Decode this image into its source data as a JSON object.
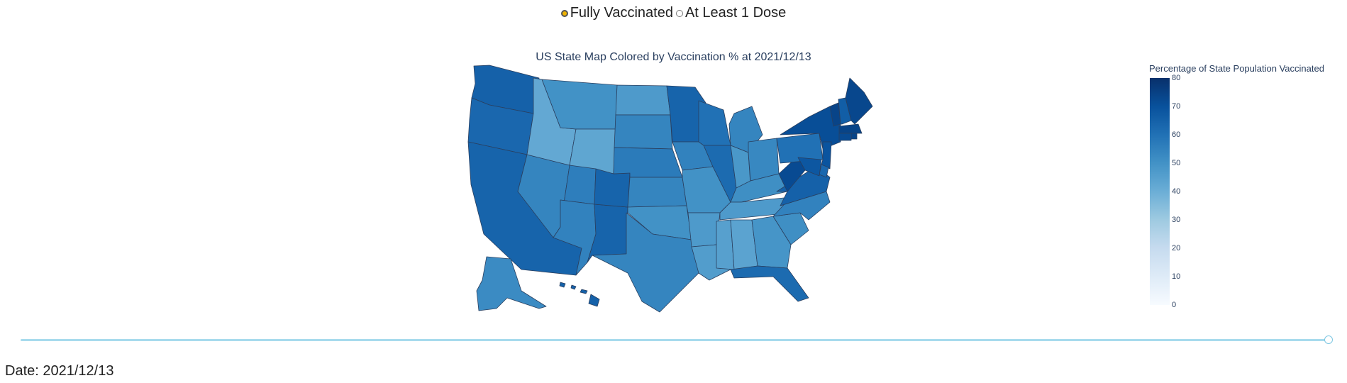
{
  "radio": {
    "options": [
      {
        "label": "Fully Vaccinated",
        "checked": true
      },
      {
        "label": "At Least 1 Dose",
        "checked": false
      }
    ]
  },
  "map": {
    "title": "US State Map Colored by Vaccination %  at 2021/12/13",
    "state_values": {
      "WA": 65,
      "OR": 63,
      "CA": 64,
      "NV": 54,
      "ID": 42,
      "MT": 50,
      "WY": 43,
      "UT": 56,
      "AZ": 55,
      "NM": 64,
      "CO": 64,
      "ND": 47,
      "SD": 54,
      "NE": 57,
      "KS": 54,
      "OK": 50,
      "TX": 54,
      "MN": 64,
      "IA": 55,
      "MO": 50,
      "AR": 47,
      "LA": 46,
      "WI": 60,
      "IL": 62,
      "MI": 54,
      "IN": 48,
      "OH": 53,
      "KY": 51,
      "TN": 47,
      "MS": 45,
      "AL": 44,
      "GA": 49,
      "FL": 62,
      "SC": 51,
      "NC": 55,
      "VA": 65,
      "WV": 72,
      "PA": 60,
      "NY": 71,
      "VT": 74,
      "NH": 66,
      "ME": 73,
      "MA": 74,
      "RI": 74,
      "CT": 72,
      "NJ": 69,
      "DE": 63,
      "MD": 68,
      "AK": 52,
      "HI": 65
    }
  },
  "colorbar": {
    "title": "Percentage of State Population Vaccinated",
    "ticks": [
      "80",
      "70",
      "60",
      "50",
      "40",
      "30",
      "20",
      "10",
      "0"
    ],
    "min": 0,
    "max": 80
  },
  "slider": {
    "value": 1.0
  },
  "date_label": "Date: 2021/12/13"
}
